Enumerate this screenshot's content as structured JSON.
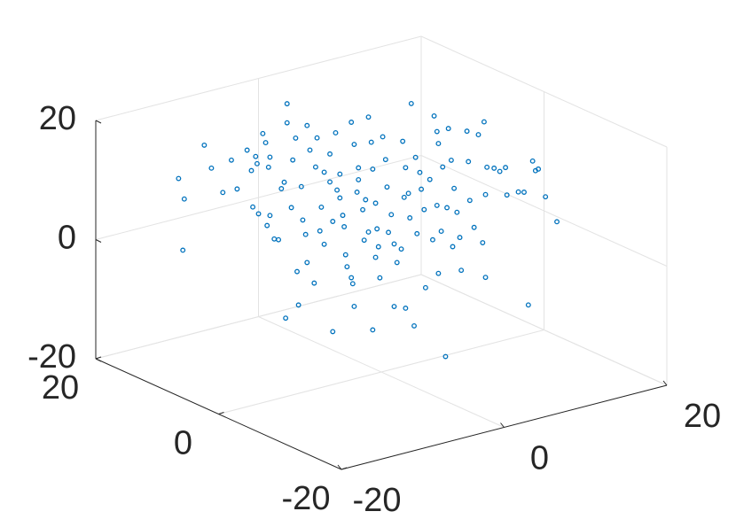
{
  "chart_data": {
    "type": "scatter3d",
    "color": "#0072bd",
    "grid": true,
    "xlim": [
      -20,
      20
    ],
    "ylim": [
      -20,
      20
    ],
    "zlim": [
      -20,
      20
    ],
    "xticks": [
      -20,
      0,
      20
    ],
    "yticks": [
      -20,
      0,
      20
    ],
    "zticks": [
      -20,
      0,
      20
    ],
    "x": [
      -14.2,
      -13.8,
      -13.9,
      -12.4,
      -11.9,
      -11.1,
      -10.5,
      -10.1,
      -9.4,
      -9.1,
      -8.8,
      -8.3,
      -8.1,
      -8.7,
      -7.8,
      -7.9,
      -9.0,
      -8.6,
      -7.8,
      -7.5,
      -7.2,
      -8.0,
      -7.0,
      -6.8,
      -6.3,
      -6.6,
      -6.6,
      -6.2,
      -6.0,
      -5.9,
      -6.7,
      -5.8,
      -5.2,
      -5.6,
      -5.5,
      -5.3,
      -5.2,
      -5.0,
      -4.5,
      -4.6,
      -4.2,
      -4.3,
      -4.0,
      -3.4,
      -3.2,
      -3.6,
      -2.9,
      -3.1,
      -2.7,
      -2.6,
      -2.4,
      -1.9,
      -2.1,
      -1.9,
      -1.6,
      -1.7,
      -1.3,
      -1.2,
      -2.1,
      -2.0,
      -0.6,
      -0.9,
      -0.7,
      -0.6,
      -0.4,
      -0.3,
      -0.4,
      -0.1,
      0.9,
      0.1,
      0.3,
      0.4,
      0.7,
      0.9,
      1.1,
      1.5,
      1.7,
      1.9,
      2.1,
      2.0,
      2.3,
      1.7,
      2.4,
      2.7,
      2.8,
      3.0,
      3.1,
      3.7,
      3.9,
      4.0,
      4.3,
      3.9,
      4.2,
      4.0,
      4.5,
      4.7,
      4.9,
      5.1,
      5.3,
      5.5,
      5.6,
      6.0,
      6.1,
      6.2,
      6.5,
      6.8,
      7.2,
      7.4,
      7.3,
      7.1,
      7.3,
      7.9,
      8.3,
      8.7,
      8.8,
      9.6,
      10.0,
      10.6,
      10.8,
      11.0,
      11.5,
      12.3,
      10.3,
      -4.0,
      -3.6,
      -3.4,
      -2.5,
      -1.6,
      -1.1,
      -0.9,
      -0.2,
      0.5,
      1.4,
      1.6,
      2.5,
      3.4,
      3.6,
      4.6,
      5.0,
      -4.7,
      -2.9
    ],
    "y": [
      14.2,
      13.8,
      13.9,
      12.4,
      11.9,
      11.1,
      10.5,
      10.1,
      9.4,
      9.1,
      8.8,
      8.3,
      8.1,
      8.7,
      7.8,
      7.9,
      9.0,
      8.6,
      7.8,
      7.5,
      7.2,
      8.0,
      7.0,
      6.8,
      6.3,
      6.6,
      6.6,
      6.2,
      6.0,
      5.9,
      6.7,
      5.8,
      5.2,
      5.6,
      5.5,
      5.3,
      5.2,
      5.0,
      4.5,
      4.6,
      4.2,
      4.3,
      4.0,
      3.4,
      3.2,
      3.6,
      2.9,
      3.1,
      2.7,
      2.6,
      2.4,
      1.9,
      2.1,
      1.9,
      1.6,
      1.7,
      1.3,
      1.2,
      2.1,
      2.0,
      0.6,
      0.9,
      0.7,
      0.6,
      0.4,
      0.3,
      0.4,
      0.1,
      -0.9,
      -0.1,
      -0.3,
      -0.4,
      -0.7,
      -0.9,
      -1.1,
      -1.5,
      -1.7,
      -1.9,
      -2.1,
      -2.0,
      -2.3,
      -1.7,
      -2.4,
      -2.7,
      -2.8,
      -3.0,
      -3.1,
      -3.7,
      -3.9,
      -4.0,
      -4.3,
      -3.9,
      -4.2,
      -4.0,
      -4.5,
      -4.7,
      -4.9,
      -5.1,
      -5.3,
      -5.5,
      -5.6,
      -6.0,
      -6.1,
      -6.2,
      -6.5,
      -6.8,
      -7.2,
      -7.4,
      -7.3,
      -7.1,
      -7.3,
      -7.9,
      -8.3,
      -8.7,
      -8.8,
      -9.6,
      -10.0,
      -10.6,
      -10.8,
      -11.0,
      -11.5,
      -12.3,
      -10.3,
      4.0,
      3.6,
      3.4,
      2.5,
      1.6,
      1.1,
      0.9,
      0.2,
      -0.5,
      -1.4,
      -1.6,
      -2.5,
      -3.4,
      -3.6,
      -4.6,
      -5.0,
      4.7,
      2.9
    ],
    "z": [
      10.9,
      7.5,
      -1.1,
      16.7,
      12.9,
      8.9,
      14.4,
      9.6,
      16.2,
      12.8,
      15.2,
      19.1,
      17.6,
      14.0,
      15.2,
      13.5,
      6.7,
      5.6,
      5.4,
      1.5,
      1.4,
      3.7,
      10.0,
      11.1,
      6.9,
      24.3,
      21.1,
      14.9,
      18.6,
      -3.8,
      -11.7,
      -9.4,
      20.8,
      10.5,
      4.9,
      2.5,
      -2.2,
      16.7,
      18.8,
      13.9,
      7.2,
      3.2,
      1.0,
      -13.6,
      19.8,
      16.2,
      12.9,
      10.2,
      6.0,
      4.1,
      -2.6,
      -9.2,
      21.7,
      18.0,
      14.1,
      10.0,
      7.1,
      2.0,
      -4.4,
      -5.4,
      -13.0,
      22.7,
      18.5,
      14.0,
      8.3,
      4.0,
      -0.8,
      -4.2,
      -8.9,
      19.5,
      15.7,
      11.1,
      6.5,
      1.6,
      -1.5,
      18.9,
      14.5,
      10.2,
      25.3,
      6.1,
      -12.0,
      -9.1,
      16.3,
      13.8,
      11.0,
      7.6,
      -5.5,
      23.4,
      20.8,
      18.8,
      14.9,
      8.4,
      4.1,
      -3.0,
      -16.9,
      21.4,
      16.1,
      11.4,
      7.4,
      3.2,
      -2.3,
      21.1,
      16.0,
      9.5,
      5.0,
      20.6,
      22.8,
      15.2,
      10.6,
      2.5,
      -3.3,
      15.1,
      14.6,
      15.3,
      10.7,
      11.3,
      11.3,
      16.6,
      15.0,
      15.3,
      10.7,
      6.6,
      -7.6,
      13.1,
      11.5,
      4.9,
      -0.6,
      12.1,
      8.8,
      3.4,
      1.0,
      3.5,
      0.8,
      9.5,
      3.5,
      12.7,
      2.6,
      8.1,
      1.6,
      -5.6,
      8.9
    ]
  }
}
